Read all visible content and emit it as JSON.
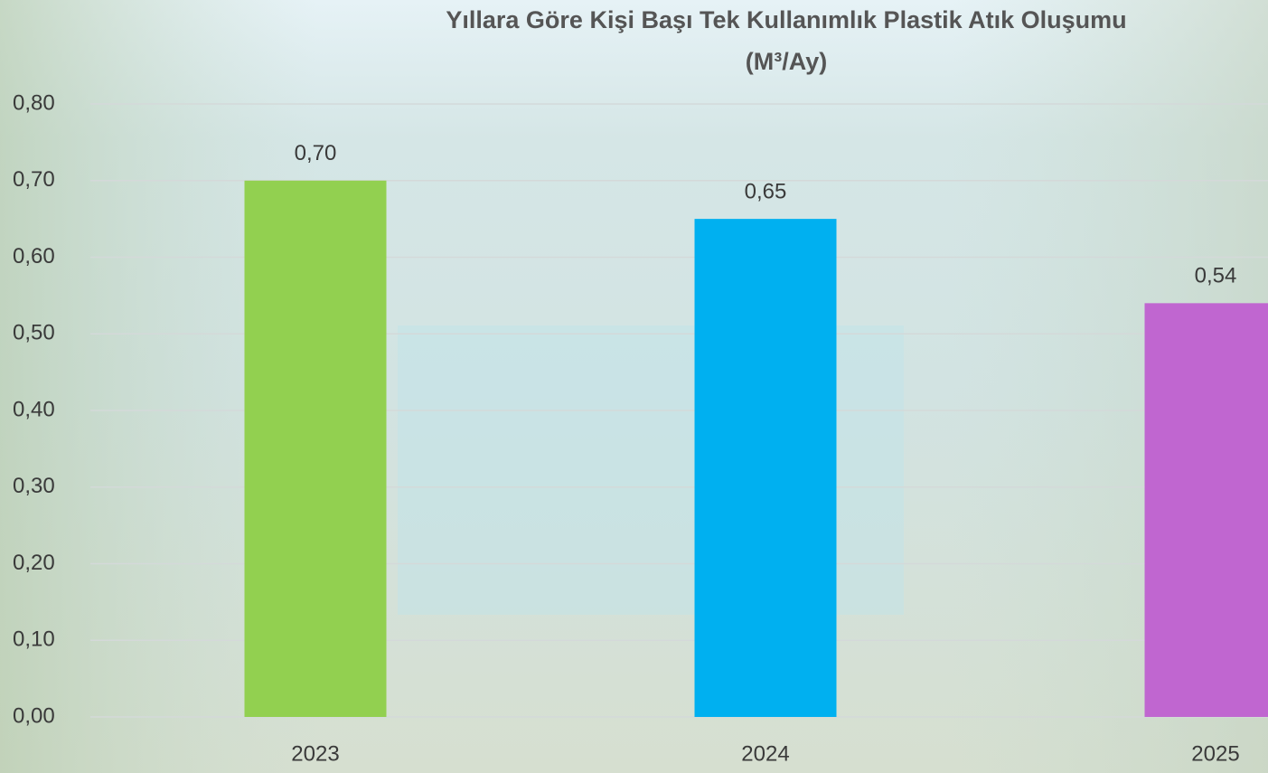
{
  "chart_data": {
    "type": "bar",
    "title": "Yıllara Göre Kişi Başı Tek Kullanımlık Plastik Atık Oluşumu",
    "subtitle": "(M³/Ay)",
    "categories": [
      "2023",
      "2024",
      "2025"
    ],
    "values": [
      0.7,
      0.65,
      0.54
    ],
    "value_labels": [
      "0,70",
      "0,65",
      "0,54"
    ],
    "colors": [
      "#92d050",
      "#00b0f0",
      "#c066d0"
    ],
    "ylim": [
      0,
      0.8
    ],
    "yticks": [
      {
        "value": 0,
        "label": "0,00"
      },
      {
        "value": 0.1,
        "label": "0,10"
      },
      {
        "value": 0.2,
        "label": "0,20"
      },
      {
        "value": 0.3,
        "label": "0,30"
      },
      {
        "value": 0.4,
        "label": "0,40"
      },
      {
        "value": 0.5,
        "label": "0,50"
      },
      {
        "value": 0.6,
        "label": "0,60"
      },
      {
        "value": 0.7,
        "label": "0,70"
      },
      {
        "value": 0.8,
        "label": "0,80"
      }
    ],
    "grid": true
  }
}
